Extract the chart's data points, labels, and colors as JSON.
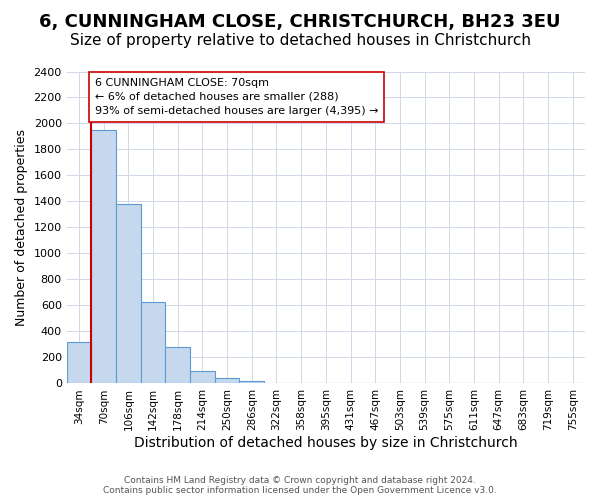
{
  "title": "6, CUNNINGHAM CLOSE, CHRISTCHURCH, BH23 3EU",
  "subtitle": "Size of property relative to detached houses in Christchurch",
  "xlabel": "Distribution of detached houses by size in Christchurch",
  "ylabel": "Number of detached properties",
  "bin_labels": [
    "34sqm",
    "70sqm",
    "106sqm",
    "142sqm",
    "178sqm",
    "214sqm",
    "250sqm",
    "286sqm",
    "322sqm",
    "358sqm",
    "395sqm",
    "431sqm",
    "467sqm",
    "503sqm",
    "539sqm",
    "575sqm",
    "611sqm",
    "647sqm",
    "683sqm",
    "719sqm",
    "755sqm"
  ],
  "bar_values": [
    320,
    1950,
    1380,
    630,
    280,
    95,
    45,
    20,
    0,
    0,
    0,
    0,
    0,
    0,
    0,
    0,
    0,
    0,
    0,
    0,
    0
  ],
  "bar_color": "#c5d8ed",
  "bar_edge_color": "#5b9bd5",
  "highlight_bin_index": 1,
  "highlight_line_color": "#cc0000",
  "annotation_line1": "6 CUNNINGHAM CLOSE: 70sqm",
  "annotation_line2": "← 6% of detached houses are smaller (288)",
  "annotation_line3": "93% of semi-detached houses are larger (4,395) →",
  "annotation_box_edge": "#cc0000",
  "annotation_box_face": "#ffffff",
  "ylim": [
    0,
    2400
  ],
  "yticks": [
    0,
    200,
    400,
    600,
    800,
    1000,
    1200,
    1400,
    1600,
    1800,
    2000,
    2200,
    2400
  ],
  "title_fontsize": 13,
  "subtitle_fontsize": 11,
  "xlabel_fontsize": 10,
  "ylabel_fontsize": 9,
  "tick_fontsize": 7.5,
  "footer_text": "Contains HM Land Registry data © Crown copyright and database right 2024.\nContains public sector information licensed under the Open Government Licence v3.0.",
  "background_color": "#ffffff",
  "grid_color": "#d0d8e8"
}
